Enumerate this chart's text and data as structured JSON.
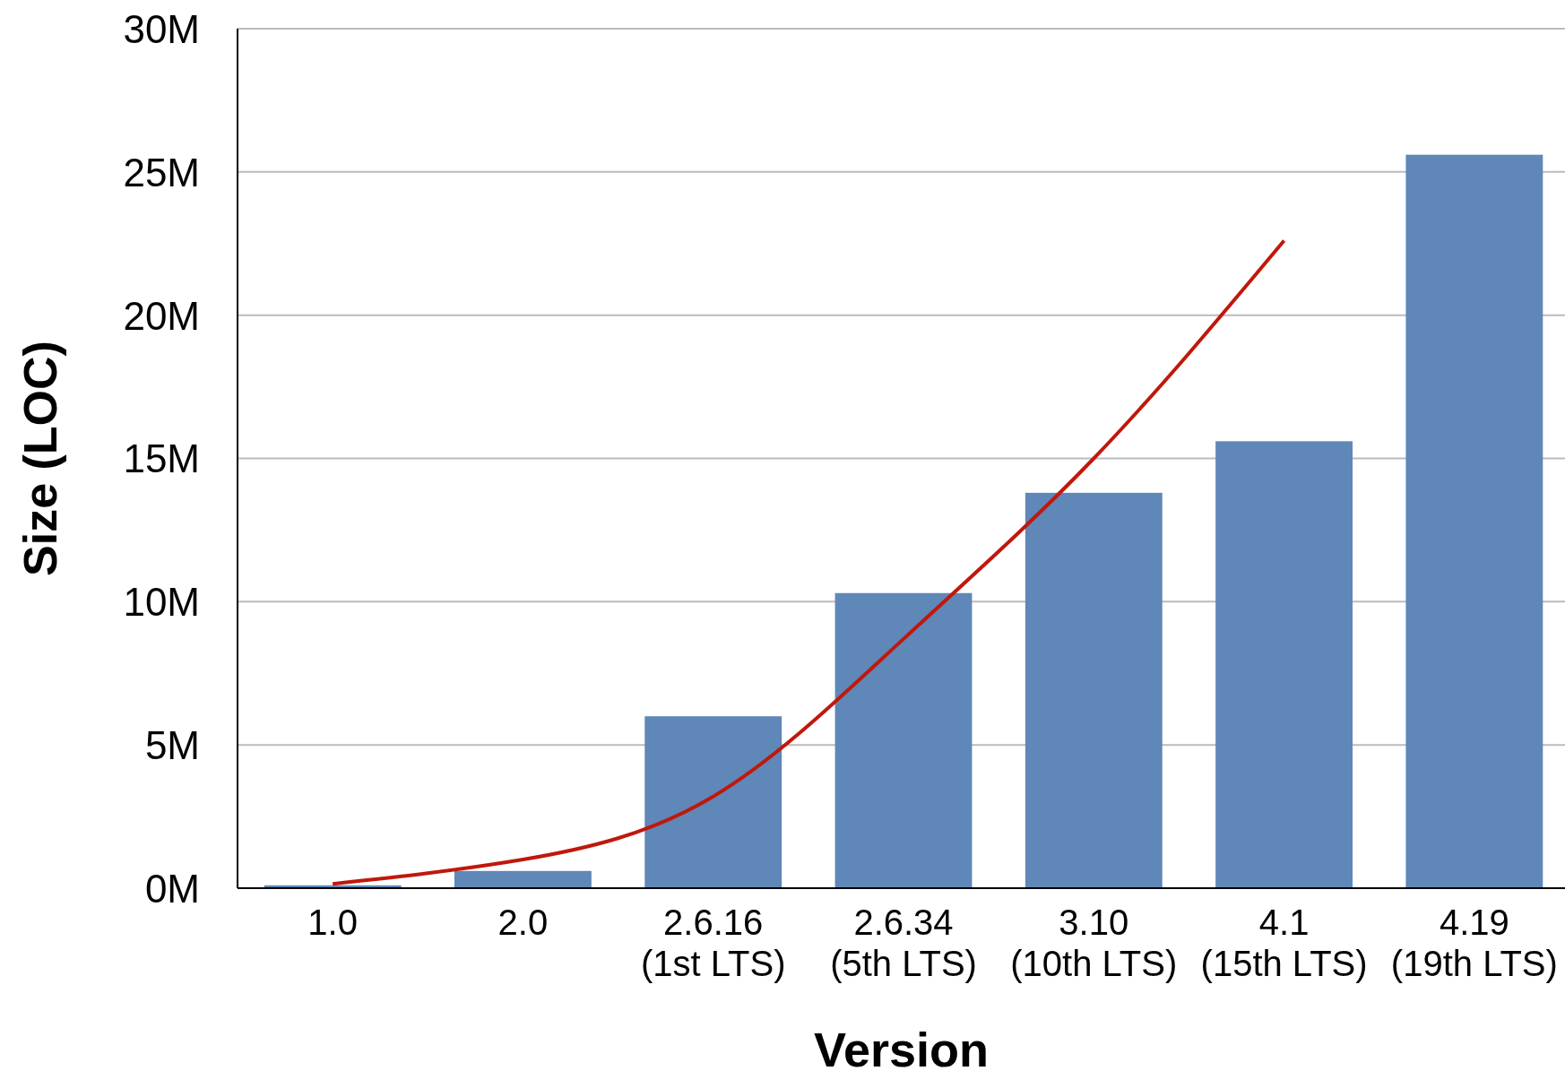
{
  "chart_data": {
    "type": "bar",
    "xlabel": "Version",
    "ylabel": "Size (LOC)",
    "categories": [
      "1.0",
      "2.0",
      "2.6.16\n(1st LTS)",
      "2.6.34\n(5th LTS)",
      "3.10\n(10th LTS)",
      "4.1\n(15th LTS)",
      "4.19\n(19th LTS)"
    ],
    "series": [
      {
        "color": "#5f87b8",
        "values": [
          0.1,
          0.6,
          6.0,
          10.3,
          13.8,
          15.6,
          25.6
        ]
      },
      {
        "type": "line",
        "color": "#c0180c",
        "x": [
          "1.0",
          "2.0",
          "2.6.16\n(1st LTS)",
          "2.6.34\n(5th LTS)",
          "3.10\n(10th LTS)",
          "4.1\n(15th LTS)"
        ],
        "values": [
          0.15,
          1.0,
          3.2,
          8.7,
          15.0,
          22.6
        ]
      }
    ],
    "ylim": [
      0,
      30
    ],
    "yticks": [
      {
        "value": 0,
        "label": "0M"
      },
      {
        "value": 5,
        "label": "5M"
      },
      {
        "value": 10,
        "label": "10M"
      },
      {
        "value": 15,
        "label": "15M"
      },
      {
        "value": 20,
        "label": "20M"
      },
      {
        "value": 25,
        "label": "25M"
      },
      {
        "value": 30,
        "label": "30M"
      }
    ],
    "grid": "y"
  }
}
